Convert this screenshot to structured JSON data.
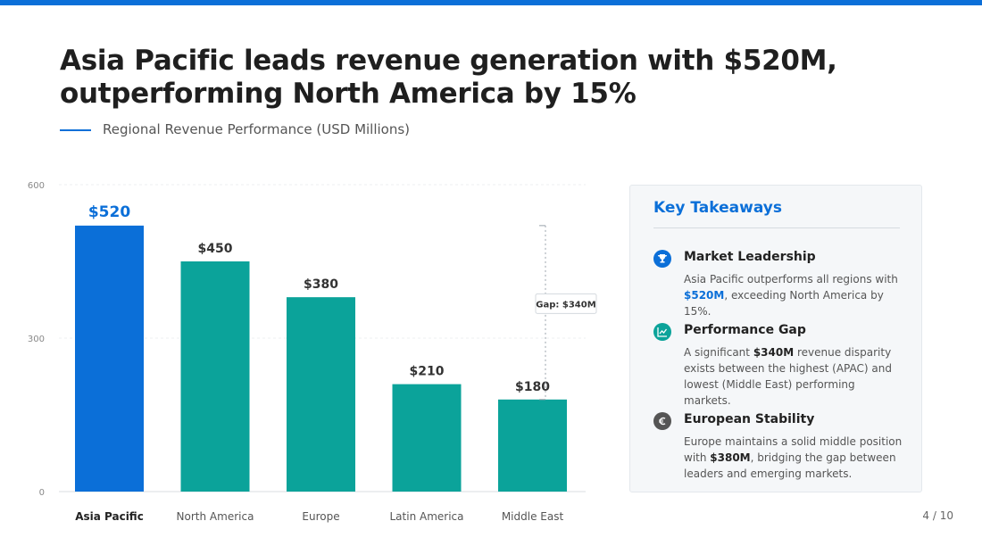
{
  "headline": "Asia Pacific leads revenue generation with $520M, outperforming North America by 15%",
  "subtitle": "Regional Revenue Performance (USD Millions)",
  "colors": {
    "accent": "#0b6fd8",
    "teal": "#0ba39a",
    "dark": "#555555"
  },
  "chart_data": {
    "type": "bar",
    "categories": [
      "Asia Pacific",
      "North America",
      "Europe",
      "Latin America",
      "Middle East"
    ],
    "values": [
      520,
      450,
      380,
      210,
      180
    ],
    "value_labels": [
      "$520",
      "$450",
      "$380",
      "$210",
      "$180"
    ],
    "highlight_index": 0,
    "ylim": [
      0,
      600
    ],
    "yticks": [
      0,
      300,
      600
    ],
    "grid": true,
    "annotation": {
      "label": "Gap: $340M",
      "from_value": 520,
      "to_value": 180
    }
  },
  "takeaways": {
    "title": "Key Takeaways",
    "items": [
      {
        "icon": "trophy-icon",
        "title": "Market Leadership",
        "text": [
          "Asia Pacific outperforms all regions with ",
          "$520M",
          ", exceeding North America by 15%."
        ]
      },
      {
        "icon": "chart-line-icon",
        "title": "Performance Gap",
        "text": [
          "A significant ",
          "$340M",
          " revenue disparity exists between the highest (APAC) and lowest (Middle East) performing markets."
        ]
      },
      {
        "icon": "euro-icon",
        "title": "European Stability",
        "text": [
          "Europe maintains a solid middle position with ",
          "$380M",
          ", bridging the gap between leaders and emerging markets."
        ]
      }
    ]
  },
  "page_number": "4 / 10"
}
